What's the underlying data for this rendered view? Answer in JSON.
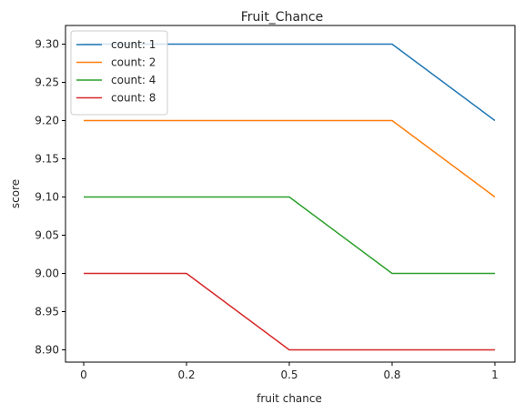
{
  "chart_data": {
    "type": "line",
    "title": "Fruit_Chance",
    "xlabel": "fruit chance",
    "ylabel": "score",
    "x": [
      0,
      0.2,
      0.5,
      0.8,
      1
    ],
    "x_tick_labels": [
      "0",
      "0.2",
      "0.5",
      "0.8",
      "1"
    ],
    "y_ticks": [
      8.9,
      8.95,
      9.0,
      9.05,
      9.1,
      9.15,
      9.2,
      9.25,
      9.3
    ],
    "y_tick_labels": [
      "8.90",
      "8.95",
      "9.00",
      "9.05",
      "9.10",
      "9.15",
      "9.20",
      "9.25",
      "9.30"
    ],
    "ylim": [
      8.88,
      9.32
    ],
    "grid": false,
    "legend_position": "top-left",
    "series": [
      {
        "name": "count: 1",
        "color": "#1f77b4",
        "values": [
          9.3,
          9.3,
          9.3,
          9.3,
          9.2
        ]
      },
      {
        "name": "count: 2",
        "color": "#ff7f0e",
        "values": [
          9.2,
          9.2,
          9.2,
          9.2,
          9.1
        ]
      },
      {
        "name": "count: 4",
        "color": "#2ca02c",
        "values": [
          9.1,
          9.1,
          9.1,
          9.0,
          9.0
        ]
      },
      {
        "name": "count: 8",
        "color": "#d62728",
        "values": [
          9.0,
          9.0,
          8.9,
          8.9,
          8.9
        ]
      }
    ]
  }
}
